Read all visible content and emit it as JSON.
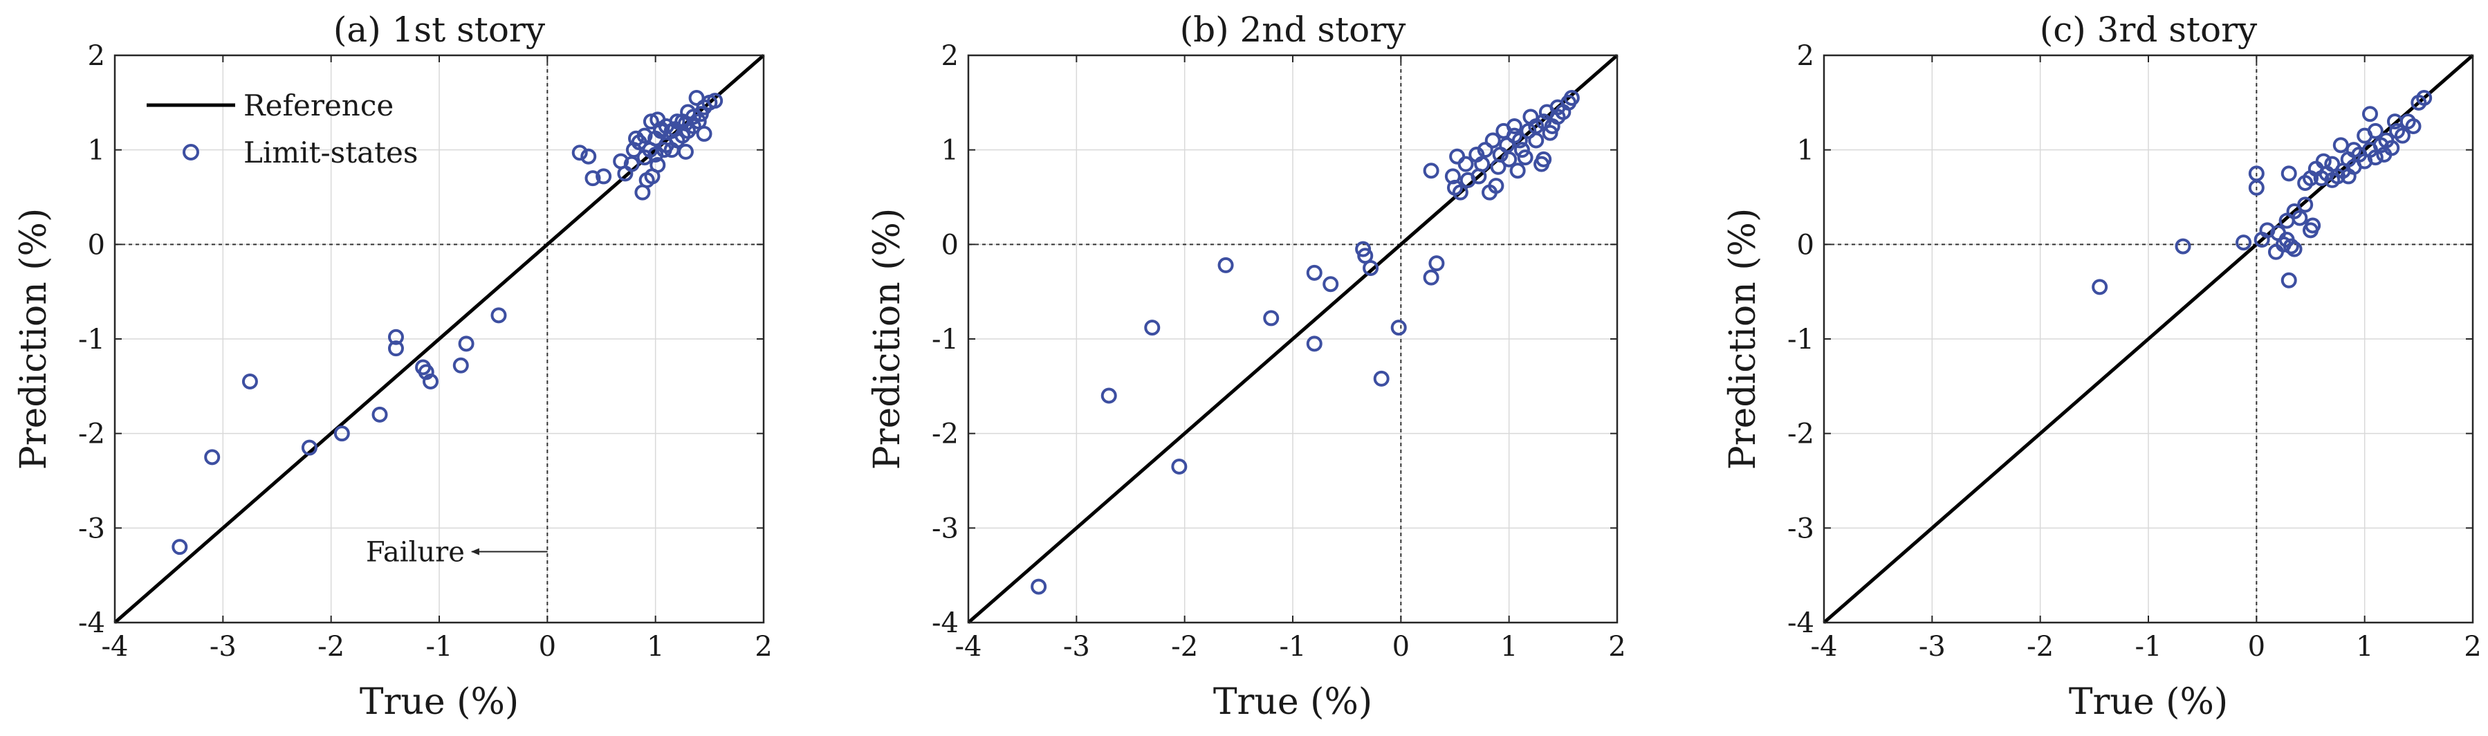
{
  "colors": {
    "marker": "#3d4fa1",
    "reference_line": "#000000",
    "grid": "#d9d9d9",
    "axis": "#262626"
  },
  "chart_data": [
    {
      "type": "scatter",
      "title": "(a) 1st story",
      "xlabel": "True (%)",
      "ylabel": "Prediction (%)",
      "xlim": [
        -4,
        2
      ],
      "ylim": [
        -4,
        2
      ],
      "xticks": [
        "-4",
        "-3",
        "-2",
        "-1",
        "0",
        "1",
        "2"
      ],
      "yticks": [
        "-4",
        "-3",
        "-2",
        "-1",
        "0",
        "1",
        "2"
      ],
      "grid": true,
      "legend": {
        "position": "top-left",
        "entries": [
          "Reference",
          "Limit-states"
        ]
      },
      "annotation": {
        "text": "Failure",
        "arrow_from": [
          0,
          -3.25
        ],
        "arrow_to": [
          -0.7,
          -3.25
        ]
      },
      "reference_line": {
        "name": "Reference",
        "points": [
          [
            -4,
            -4
          ],
          [
            2,
            2
          ]
        ]
      },
      "series": [
        {
          "name": "Limit-states",
          "points": [
            [
              -3.4,
              -3.2
            ],
            [
              -3.1,
              -2.25
            ],
            [
              -2.75,
              -1.45
            ],
            [
              -2.2,
              -2.15
            ],
            [
              -1.9,
              -2.0
            ],
            [
              -1.55,
              -1.8
            ],
            [
              -1.4,
              -0.98
            ],
            [
              -1.4,
              -1.1
            ],
            [
              -1.15,
              -1.3
            ],
            [
              -1.12,
              -1.35
            ],
            [
              -1.08,
              -1.45
            ],
            [
              -0.8,
              -1.28
            ],
            [
              -0.75,
              -1.05
            ],
            [
              -0.45,
              -0.75
            ],
            [
              0.3,
              0.97
            ],
            [
              0.38,
              0.93
            ],
            [
              0.42,
              0.7
            ],
            [
              0.52,
              0.72
            ],
            [
              0.68,
              0.88
            ],
            [
              0.72,
              0.75
            ],
            [
              0.78,
              0.85
            ],
            [
              0.88,
              0.55
            ],
            [
              0.92,
              0.68
            ],
            [
              0.97,
              0.72
            ],
            [
              1.02,
              0.84
            ],
            [
              0.96,
              1.3
            ],
            [
              1.02,
              1.32
            ],
            [
              1.05,
              1.22
            ],
            [
              1.28,
              0.98
            ],
            [
              1.45,
              1.17
            ],
            [
              0.8,
              1.0
            ],
            [
              0.85,
              1.08
            ],
            [
              0.9,
              1.15
            ],
            [
              0.95,
              1.0
            ],
            [
              1.0,
              1.12
            ],
            [
              1.05,
              1.2
            ],
            [
              1.1,
              1.05
            ],
            [
              1.15,
              1.2
            ],
            [
              1.2,
              1.1
            ],
            [
              1.25,
              1.3
            ],
            [
              1.3,
              1.2
            ],
            [
              1.35,
              1.35
            ],
            [
              1.4,
              1.3
            ],
            [
              1.45,
              1.45
            ],
            [
              1.5,
              1.5
            ],
            [
              1.55,
              1.52
            ],
            [
              1.38,
              1.55
            ],
            [
              1.3,
              1.4
            ],
            [
              1.2,
              1.3
            ],
            [
              1.1,
              1.25
            ],
            [
              1.0,
              0.95
            ],
            [
              0.9,
              0.92
            ],
            [
              1.15,
              1.0
            ],
            [
              1.25,
              1.15
            ],
            [
              1.35,
              1.25
            ],
            [
              1.42,
              1.38
            ],
            [
              0.82,
              1.12
            ],
            [
              1.08,
              1.0
            ],
            [
              1.18,
              1.22
            ],
            [
              1.28,
              1.28
            ]
          ]
        }
      ]
    },
    {
      "type": "scatter",
      "title": "(b) 2nd story",
      "xlabel": "True (%)",
      "ylabel": "Prediction (%)",
      "xlim": [
        -4,
        2
      ],
      "ylim": [
        -4,
        2
      ],
      "xticks": [
        "-4",
        "-3",
        "-2",
        "-1",
        "0",
        "1",
        "2"
      ],
      "yticks": [
        "-4",
        "-3",
        "-2",
        "-1",
        "0",
        "1",
        "2"
      ],
      "grid": true,
      "reference_line": {
        "name": "Reference",
        "points": [
          [
            -4,
            -4
          ],
          [
            2,
            2
          ]
        ]
      },
      "series": [
        {
          "name": "Limit-states",
          "points": [
            [
              -3.35,
              -3.62
            ],
            [
              -2.7,
              -1.6
            ],
            [
              -2.3,
              -0.88
            ],
            [
              -2.05,
              -2.35
            ],
            [
              -1.62,
              -0.22
            ],
            [
              -1.2,
              -0.78
            ],
            [
              -0.8,
              -1.05
            ],
            [
              -0.8,
              -0.3
            ],
            [
              -0.65,
              -0.42
            ],
            [
              -0.35,
              -0.05
            ],
            [
              -0.33,
              -0.12
            ],
            [
              -0.28,
              -0.25
            ],
            [
              -0.18,
              -1.42
            ],
            [
              -0.02,
              -0.88
            ],
            [
              0.28,
              -0.35
            ],
            [
              0.33,
              -0.2
            ],
            [
              0.28,
              0.78
            ],
            [
              0.48,
              0.72
            ],
            [
              0.5,
              0.6
            ],
            [
              0.55,
              0.55
            ],
            [
              0.52,
              0.93
            ],
            [
              0.62,
              0.68
            ],
            [
              0.72,
              0.72
            ],
            [
              0.82,
              0.55
            ],
            [
              0.88,
              0.62
            ],
            [
              1.08,
              0.78
            ],
            [
              1.3,
              0.85
            ],
            [
              1.32,
              0.9
            ],
            [
              1.45,
              1.35
            ],
            [
              1.58,
              1.55
            ],
            [
              0.6,
              0.85
            ],
            [
              0.7,
              0.95
            ],
            [
              0.78,
              1.0
            ],
            [
              0.85,
              1.1
            ],
            [
              0.92,
              0.95
            ],
            [
              0.98,
              1.05
            ],
            [
              1.05,
              1.15
            ],
            [
              1.12,
              1.0
            ],
            [
              1.18,
              1.2
            ],
            [
              1.25,
              1.1
            ],
            [
              1.32,
              1.3
            ],
            [
              1.4,
              1.25
            ],
            [
              1.45,
              1.45
            ],
            [
              1.5,
              1.4
            ],
            [
              1.55,
              1.5
            ],
            [
              0.95,
              1.2
            ],
            [
              1.05,
              1.25
            ],
            [
              1.2,
              1.35
            ],
            [
              1.35,
              1.4
            ],
            [
              0.9,
              0.82
            ],
            [
              1.0,
              0.9
            ],
            [
              1.15,
              0.92
            ],
            [
              1.25,
              1.25
            ],
            [
              0.75,
              0.85
            ],
            [
              1.38,
              1.18
            ],
            [
              1.1,
              1.1
            ]
          ]
        }
      ]
    },
    {
      "type": "scatter",
      "title": "(c) 3rd story",
      "xlabel": "True (%)",
      "ylabel": "Prediction (%)",
      "xlim": [
        -4,
        2
      ],
      "ylim": [
        -4,
        2
      ],
      "xticks": [
        "-4",
        "-3",
        "-2",
        "-1",
        "0",
        "1",
        "2"
      ],
      "yticks": [
        "-4",
        "-3",
        "-2",
        "-1",
        "0",
        "1",
        "2"
      ],
      "grid": true,
      "reference_line": {
        "name": "Reference",
        "points": [
          [
            -4,
            -4
          ],
          [
            2,
            2
          ]
        ]
      },
      "series": [
        {
          "name": "Limit-states",
          "points": [
            [
              -1.45,
              -0.45
            ],
            [
              -0.68,
              -0.02
            ],
            [
              -0.12,
              0.02
            ],
            [
              0.05,
              0.05
            ],
            [
              0.1,
              0.15
            ],
            [
              0.18,
              -0.08
            ],
            [
              0.2,
              0.12
            ],
            [
              0.25,
              0.0
            ],
            [
              0.28,
              0.05
            ],
            [
              0.32,
              -0.02
            ],
            [
              0.35,
              -0.05
            ],
            [
              0.3,
              -0.38
            ],
            [
              0.28,
              0.25
            ],
            [
              0.35,
              0.35
            ],
            [
              0.4,
              0.28
            ],
            [
              0.45,
              0.42
            ],
            [
              0.5,
              0.15
            ],
            [
              0.52,
              0.2
            ],
            [
              0.0,
              0.6
            ],
            [
              0.0,
              0.75
            ],
            [
              0.3,
              0.75
            ],
            [
              0.45,
              0.65
            ],
            [
              0.5,
              0.7
            ],
            [
              0.55,
              0.8
            ],
            [
              0.6,
              0.7
            ],
            [
              0.65,
              0.75
            ],
            [
              0.7,
              0.85
            ],
            [
              0.75,
              0.72
            ],
            [
              0.8,
              0.78
            ],
            [
              0.85,
              0.9
            ],
            [
              0.9,
              0.82
            ],
            [
              0.95,
              0.95
            ],
            [
              1.0,
              0.88
            ],
            [
              1.05,
              1.0
            ],
            [
              1.1,
              0.92
            ],
            [
              1.15,
              1.05
            ],
            [
              1.2,
              1.1
            ],
            [
              1.25,
              1.02
            ],
            [
              1.3,
              1.2
            ],
            [
              1.35,
              1.15
            ],
            [
              1.4,
              1.3
            ],
            [
              1.45,
              1.25
            ],
            [
              1.5,
              1.5
            ],
            [
              1.55,
              1.55
            ],
            [
              1.05,
              1.38
            ],
            [
              1.1,
              1.2
            ],
            [
              0.78,
              1.05
            ],
            [
              0.9,
              1.0
            ],
            [
              1.0,
              1.15
            ],
            [
              0.62,
              0.88
            ],
            [
              0.7,
              0.68
            ],
            [
              0.85,
              0.72
            ],
            [
              1.18,
              0.95
            ],
            [
              1.28,
              1.3
            ]
          ]
        }
      ]
    }
  ]
}
